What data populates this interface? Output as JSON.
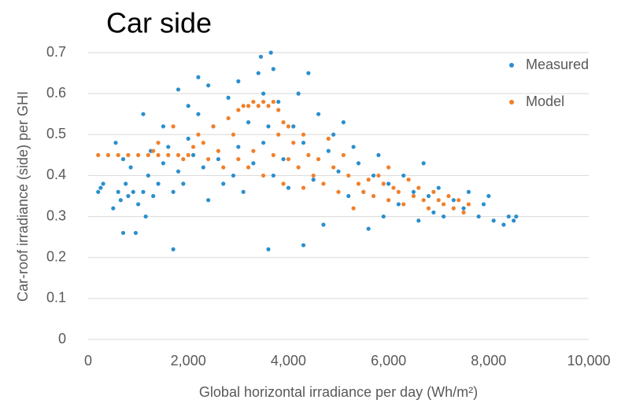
{
  "chart_data": {
    "type": "scatter",
    "title": "Car side",
    "x_label": "Global horizontal irradiance per day (Wh/m²)",
    "y_label": "Car-roof irradiance (side) per GHI",
    "xlim": [
      0,
      10000
    ],
    "xticks": [
      0,
      {
        "value": 2000,
        "label": "2,000"
      },
      {
        "value": 4000,
        "label": "4,000"
      },
      {
        "value": 6000,
        "label": "6,000"
      },
      {
        "value": 8000,
        "label": "8,000"
      },
      {
        "value": 10000,
        "label": "10,000"
      }
    ],
    "ylim": [
      0,
      0.7
    ],
    "yticks": [
      0,
      0.1,
      0.2,
      0.3,
      0.4,
      0.5,
      0.6,
      0.7
    ],
    "grid": true,
    "legend": "top-right",
    "series": [
      {
        "name": "Measured",
        "color": "#2a8fcc",
        "x": [
          200,
          250,
          300,
          500,
          550,
          600,
          650,
          700,
          700,
          750,
          800,
          850,
          900,
          950,
          1000,
          1100,
          1100,
          1150,
          1200,
          1250,
          1300,
          1400,
          1500,
          1500,
          1600,
          1700,
          1700,
          1800,
          1800,
          1900,
          2000,
          2000,
          2100,
          2200,
          2200,
          2300,
          2400,
          2400,
          2500,
          2600,
          2700,
          2800,
          2900,
          3000,
          3000,
          3100,
          3200,
          3300,
          3400,
          3450,
          3500,
          3500,
          3600,
          3600,
          3650,
          3700,
          3700,
          3800,
          3900,
          4000,
          4100,
          4200,
          4300,
          4300,
          4400,
          4500,
          4600,
          4700,
          4800,
          4900,
          5000,
          5100,
          5200,
          5300,
          5400,
          5500,
          5600,
          5700,
          5800,
          5900,
          6000,
          6200,
          6300,
          6500,
          6600,
          6700,
          6800,
          6900,
          7000,
          7100,
          7300,
          7500,
          7600,
          7800,
          7900,
          8000,
          8100,
          8300,
          8400,
          8500,
          8550
        ],
        "values": [
          0.36,
          0.37,
          0.38,
          0.32,
          0.48,
          0.36,
          0.34,
          0.26,
          0.44,
          0.38,
          0.35,
          0.42,
          0.36,
          0.26,
          0.33,
          0.55,
          0.36,
          0.3,
          0.4,
          0.46,
          0.35,
          0.38,
          0.52,
          0.43,
          0.47,
          0.22,
          0.36,
          0.61,
          0.41,
          0.38,
          0.57,
          0.49,
          0.45,
          0.64,
          0.55,
          0.42,
          0.34,
          0.62,
          0.52,
          0.44,
          0.38,
          0.59,
          0.4,
          0.63,
          0.47,
          0.36,
          0.53,
          0.43,
          0.65,
          0.69,
          0.6,
          0.48,
          0.22,
          0.52,
          0.7,
          0.66,
          0.4,
          0.58,
          0.44,
          0.37,
          0.52,
          0.6,
          0.23,
          0.48,
          0.65,
          0.39,
          0.55,
          0.28,
          0.46,
          0.5,
          0.41,
          0.53,
          0.35,
          0.47,
          0.43,
          0.36,
          0.27,
          0.4,
          0.45,
          0.3,
          0.38,
          0.33,
          0.4,
          0.36,
          0.29,
          0.43,
          0.35,
          0.31,
          0.37,
          0.3,
          0.34,
          0.32,
          0.36,
          0.3,
          0.33,
          0.35,
          0.29,
          0.28,
          0.3,
          0.29,
          0.3
        ]
      },
      {
        "name": "Model",
        "color": "#f0802a",
        "x": [
          200,
          400,
          600,
          800,
          1000,
          1200,
          1400,
          1600,
          1800,
          1300,
          1400,
          1700,
          1900,
          2000,
          2100,
          2200,
          2300,
          2400,
          2500,
          2600,
          2700,
          2800,
          2900,
          3000,
          3000,
          3100,
          3200,
          3200,
          3300,
          3300,
          3400,
          3500,
          3500,
          3600,
          3700,
          3700,
          3800,
          3800,
          3900,
          3900,
          4000,
          4000,
          4100,
          4200,
          4300,
          4300,
          4400,
          4500,
          4600,
          4700,
          4800,
          4900,
          5000,
          5100,
          5200,
          5300,
          5400,
          5500,
          5600,
          5700,
          5800,
          5900,
          6000,
          6000,
          6100,
          6200,
          6300,
          6400,
          6500,
          6600,
          6700,
          6800,
          6900,
          7000,
          7100,
          7200,
          7300,
          7400,
          7500,
          7600
        ],
        "values": [
          0.45,
          0.45,
          0.45,
          0.45,
          0.45,
          0.45,
          0.45,
          0.45,
          0.45,
          0.46,
          0.48,
          0.52,
          0.44,
          0.45,
          0.47,
          0.5,
          0.48,
          0.44,
          0.52,
          0.46,
          0.42,
          0.54,
          0.5,
          0.56,
          0.44,
          0.57,
          0.42,
          0.57,
          0.58,
          0.46,
          0.57,
          0.58,
          0.4,
          0.57,
          0.58,
          0.45,
          0.56,
          0.5,
          0.53,
          0.38,
          0.52,
          0.44,
          0.48,
          0.42,
          0.5,
          0.37,
          0.45,
          0.4,
          0.44,
          0.38,
          0.49,
          0.42,
          0.36,
          0.45,
          0.4,
          0.32,
          0.38,
          0.36,
          0.39,
          0.35,
          0.4,
          0.38,
          0.42,
          0.34,
          0.37,
          0.36,
          0.33,
          0.39,
          0.35,
          0.37,
          0.34,
          0.32,
          0.36,
          0.34,
          0.33,
          0.35,
          0.32,
          0.34,
          0.31,
          0.33
        ]
      }
    ]
  }
}
